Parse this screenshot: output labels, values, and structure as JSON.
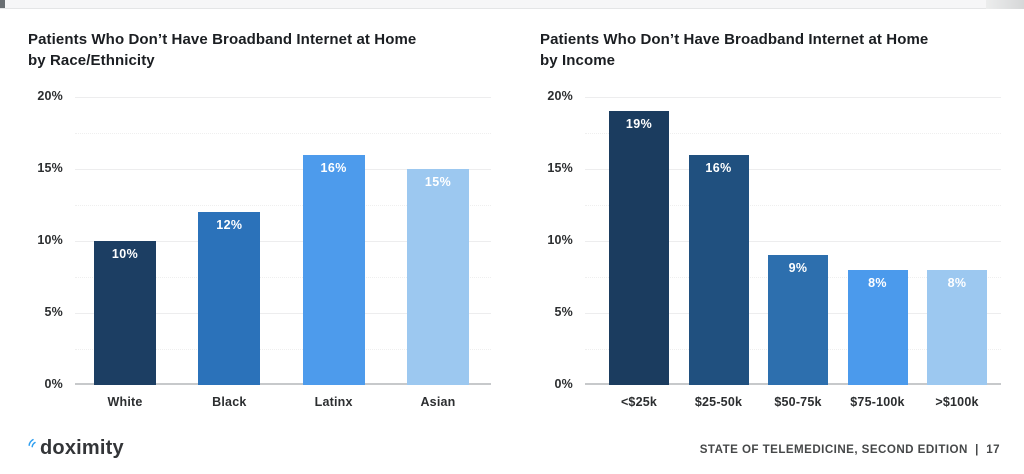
{
  "colors": {
    "title": "#1b1e22",
    "axis_label": "#2c2e30",
    "gridline": "#ededee",
    "baseline": "#c7c9cb",
    "footer_text": "#464849",
    "logo_blue": "#2f9ff0"
  },
  "chart_data": [
    {
      "type": "bar",
      "title": "Patients Who Don’t Have Broadband Internet at Home by Race/Ethnicity",
      "title_line1": "Patients Who Don’t Have Broadband Internet at Home",
      "title_line2": "by Race/Ethnicity",
      "categories": [
        "White",
        "Black",
        "Latinx",
        "Asian"
      ],
      "values": [
        10,
        12,
        16,
        15
      ],
      "value_labels": [
        "10%",
        "12%",
        "16%",
        "15%"
      ],
      "bar_colors": [
        "#1c3e63",
        "#2b72ba",
        "#4d9bec",
        "#9cc8f0"
      ],
      "xlabel": "",
      "ylabel": "",
      "ylim": [
        0,
        20
      ],
      "ytick_values": [
        0,
        5,
        10,
        15,
        20
      ],
      "ytick_labels": [
        "0%",
        "5%",
        "10%",
        "15%",
        "20%"
      ],
      "grid": true,
      "legend": "none"
    },
    {
      "type": "bar",
      "title": "Patients Who Don’t Have Broadband Internet at Home by Income",
      "title_line1": "Patients Who Don’t Have Broadband Internet at Home",
      "title_line2": "by Income",
      "categories": [
        "<$25k",
        "$25-50k",
        "$50-75k",
        "$75-100k",
        ">$100k"
      ],
      "values": [
        19,
        16,
        9,
        8,
        8
      ],
      "value_labels": [
        "19%",
        "16%",
        "9%",
        "8%",
        "8%"
      ],
      "bar_colors": [
        "#1b3c5f",
        "#20507f",
        "#2d6fae",
        "#4b9aec",
        "#9cc8f0"
      ],
      "xlabel": "",
      "ylabel": "",
      "ylim": [
        0,
        20
      ],
      "ytick_values": [
        0,
        5,
        10,
        15,
        20
      ],
      "ytick_labels": [
        "0%",
        "5%",
        "10%",
        "15%",
        "20%"
      ],
      "grid": true,
      "legend": "none"
    }
  ],
  "footer": {
    "logo_text": "doximity",
    "right_text": "STATE OF TELEMEDICINE, SECOND EDITION  |  17"
  }
}
